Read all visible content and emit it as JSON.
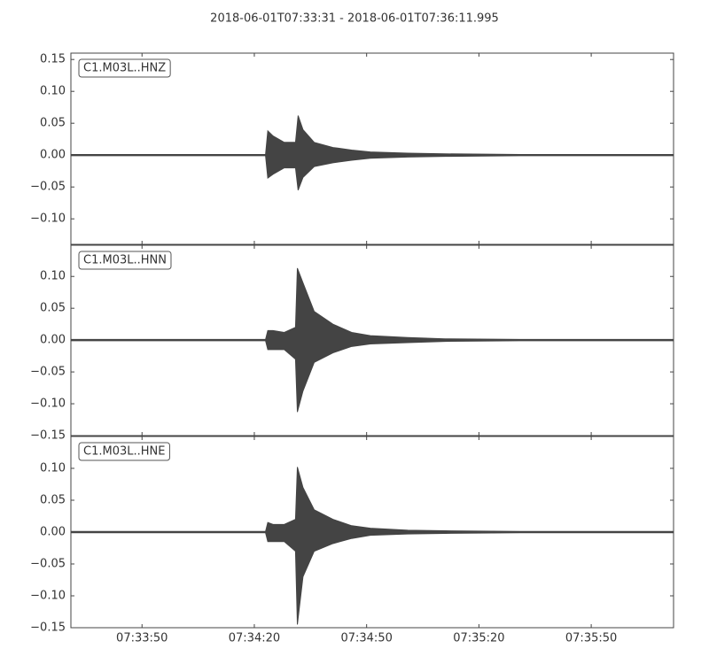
{
  "title": "2018-06-01T07:33:31  -  2018-06-01T07:36:11.995",
  "chart_data": [
    {
      "type": "line",
      "label": "C1.M03L..HNZ",
      "color": "#444444",
      "x": [
        0,
        52,
        52.6,
        54,
        57,
        60,
        60.7,
        62,
        65,
        70,
        75,
        80,
        90,
        100,
        120,
        160.995
      ],
      "upper": [
        0.001,
        0.001,
        0.038,
        0.03,
        0.02,
        0.02,
        0.062,
        0.04,
        0.02,
        0.012,
        0.008,
        0.005,
        0.003,
        0.002,
        0.001,
        0.001
      ],
      "lower": [
        -0.001,
        -0.001,
        -0.036,
        -0.03,
        -0.02,
        -0.02,
        -0.055,
        -0.035,
        -0.018,
        -0.012,
        -0.008,
        -0.005,
        -0.003,
        -0.002,
        -0.001,
        -0.001
      ],
      "xlim": [
        0,
        160.995
      ],
      "ylim": [
        -0.14,
        0.16
      ],
      "yticks": [
        {
          "value": -0.1,
          "label": "−0.10"
        },
        {
          "value": -0.05,
          "label": "−0.05"
        },
        {
          "value": 0,
          "label": "0.00"
        },
        0.05,
        {
          "value": 0.1,
          "label": "0.10"
        },
        0.15
      ]
    },
    {
      "type": "line",
      "label": "C1.M03L..HNN",
      "color": "#444444",
      "x": [
        0,
        52,
        52.6,
        54,
        57,
        60,
        60.5,
        62,
        65,
        70,
        75,
        80,
        90,
        100,
        120,
        160.995
      ],
      "upper": [
        0.001,
        0.001,
        0.015,
        0.015,
        0.012,
        0.02,
        0.113,
        0.09,
        0.045,
        0.025,
        0.012,
        0.007,
        0.004,
        0.002,
        0.001,
        0.001
      ],
      "lower": [
        -0.001,
        -0.001,
        -0.015,
        -0.015,
        -0.015,
        -0.03,
        -0.113,
        -0.08,
        -0.035,
        -0.02,
        -0.01,
        -0.006,
        -0.004,
        -0.002,
        -0.001,
        -0.001
      ],
      "xlim": [
        0,
        160.995
      ],
      "ylim": [
        -0.15,
        0.149
      ],
      "yticks": [
        {
          "value": -0.15,
          "label": "−0.15"
        },
        {
          "value": -0.1,
          "label": "−0.10"
        },
        {
          "value": -0.05,
          "label": "−0.05"
        },
        {
          "value": 0,
          "label": "0.00"
        },
        0.05,
        {
          "value": 0.1,
          "label": "0.10"
        }
      ]
    },
    {
      "type": "line",
      "label": "C1.M03L..HNE",
      "color": "#444444",
      "x": [
        0,
        52,
        52.6,
        54,
        57,
        60,
        60.5,
        62,
        65,
        70,
        75,
        80,
        90,
        100,
        120,
        160.995
      ],
      "upper": [
        0.001,
        0.001,
        0.015,
        0.012,
        0.012,
        0.02,
        0.102,
        0.07,
        0.035,
        0.02,
        0.01,
        0.006,
        0.003,
        0.002,
        0.001,
        0.001
      ],
      "lower": [
        -0.001,
        -0.001,
        -0.015,
        -0.015,
        -0.015,
        -0.03,
        -0.145,
        -0.07,
        -0.03,
        -0.018,
        -0.01,
        -0.005,
        -0.003,
        -0.002,
        -0.001,
        -0.001
      ],
      "xlim": [
        0,
        160.995
      ],
      "ylim": [
        -0.15,
        0.15
      ],
      "yticks": [
        {
          "value": -0.15,
          "label": "−0.15"
        },
        {
          "value": -0.1,
          "label": "−0.10"
        },
        {
          "value": -0.05,
          "label": "−0.05"
        },
        {
          "value": 0,
          "label": "0.00"
        },
        0.05,
        {
          "value": 0.1,
          "label": "0.10"
        }
      ],
      "xticks": [
        {
          "value": 19,
          "label": "07:33:50"
        },
        {
          "value": 49,
          "label": "07:34:20"
        },
        {
          "value": 79,
          "label": "07:34:50"
        },
        {
          "value": 109,
          "label": "07:35:20"
        },
        {
          "value": 139,
          "label": "07:35:50"
        }
      ]
    }
  ]
}
